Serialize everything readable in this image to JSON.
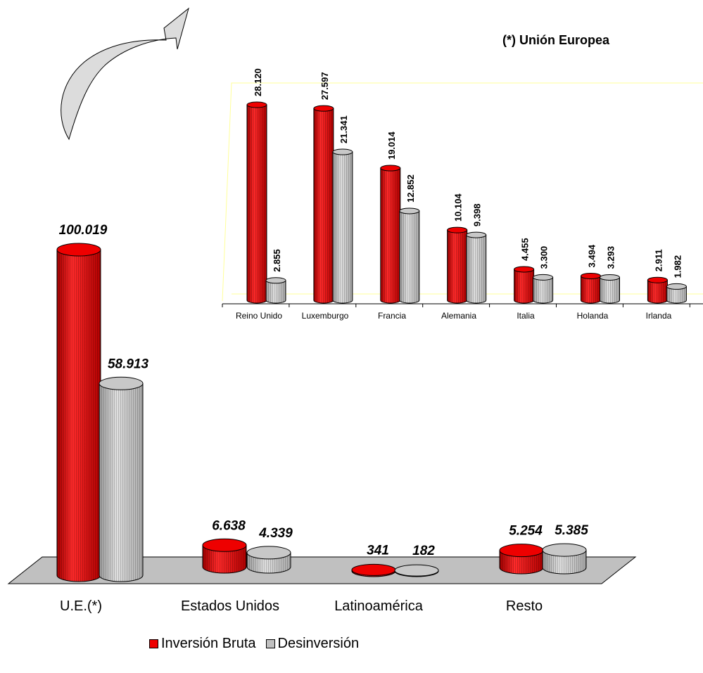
{
  "chart_data": [
    {
      "type": "bar",
      "categories": [
        "U.E.(*)",
        "Estados Unidos",
        "Latinoamérica",
        "Resto"
      ],
      "series": [
        {
          "name": "Inversión Bruta",
          "values": [
            100019,
            6638,
            341,
            5254
          ],
          "labels": [
            "100.019",
            "6.638",
            "341",
            "5.254"
          ]
        },
        {
          "name": "Desinversión",
          "values": [
            58913,
            4339,
            182,
            5385
          ],
          "labels": [
            "58.913",
            "4.339",
            "182",
            "5.385"
          ]
        }
      ]
    },
    {
      "type": "bar",
      "title": "(*) Unión Europea",
      "categories": [
        "Reino Unido",
        "Luxemburgo",
        "Francia",
        "Alemania",
        "Italia",
        "Holanda",
        "Irlanda"
      ],
      "series": [
        {
          "name": "Inversión Bruta",
          "values": [
            28120,
            27597,
            19014,
            10104,
            4455,
            3494,
            2911
          ],
          "labels": [
            "28.120",
            "27.597",
            "19.014",
            "10.104",
            "4.455",
            "3.494",
            "2.911"
          ]
        },
        {
          "name": "Desinversión",
          "values": [
            2855,
            21341,
            12852,
            9398,
            3300,
            3293,
            1982
          ],
          "labels": [
            "2.855",
            "21.341",
            "12.852",
            "9.398",
            "3.300",
            "3.293",
            "1.982"
          ]
        }
      ]
    }
  ],
  "legend": {
    "items": [
      "Inversión Bruta",
      "Desinversión"
    ]
  },
  "colors": {
    "inversion": "#ee0000",
    "desinversion": "#c0c0c0",
    "floor": "#c0c0c0"
  }
}
